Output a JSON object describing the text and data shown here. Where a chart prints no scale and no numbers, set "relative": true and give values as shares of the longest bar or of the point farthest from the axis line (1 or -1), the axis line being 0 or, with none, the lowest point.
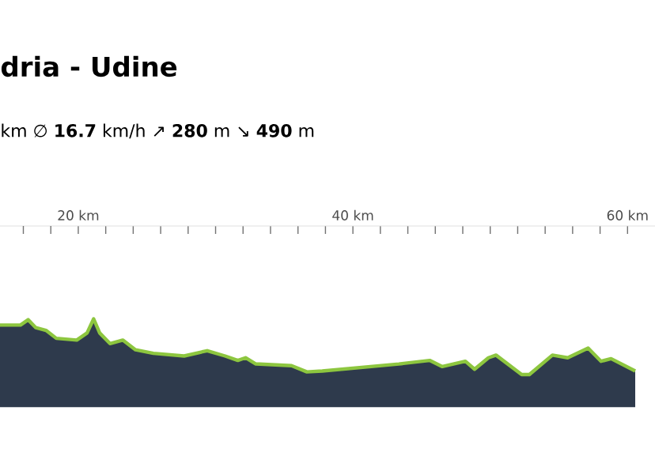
{
  "chart_data": {
    "type": "area",
    "title": "dria - Udine",
    "subtitle": "km   ∅ **16.7** km/h   ↗ **280** m   ↘ **490** m",
    "relative": true,
    "x": [
      14.3,
      15.79,
      16.35,
      16.91,
      17.65,
      18.4,
      19.89,
      20.64,
      21.12,
      21.56,
      22.31,
      23.24,
      24.17,
      25.47,
      27.71,
      29.39,
      30.69,
      31.62,
      32.18,
      32.93,
      35.53,
      36.65,
      37.77,
      43.35,
      45.59,
      46.51,
      48.19,
      48.86,
      49.87,
      50.42,
      52.29,
      52.85,
      54.53,
      55.64,
      57.13,
      58.07,
      58.8,
      60.56
    ],
    "series": [
      {
        "color": "#2e3a4c",
        "values": [
          0.93,
          0.93,
          0.99,
          0.9,
          0.87,
          0.78,
          0.76,
          0.84,
          1.0,
          0.84,
          0.72,
          0.76,
          0.65,
          0.61,
          0.58,
          0.64,
          0.58,
          0.53,
          0.56,
          0.49,
          0.47,
          0.4,
          0.41,
          0.49,
          0.53,
          0.46,
          0.52,
          0.43,
          0.56,
          0.59,
          0.37,
          0.37,
          0.59,
          0.56,
          0.67,
          0.52,
          0.55,
          0.41
        ]
      }
    ],
    "xlim": [
      14.3,
      62
    ],
    "xticks": [
      {
        "value": 20,
        "label": "20 km"
      },
      {
        "value": 40,
        "label": "40 km"
      },
      {
        "value": 60,
        "label": "60 km"
      }
    ]
  }
}
